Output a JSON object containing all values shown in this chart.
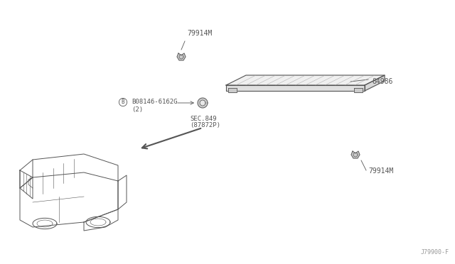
{
  "bg_color": "#ffffff",
  "line_color": "#555555",
  "text_color": "#555555",
  "part_number_bottom_right": "J79900-F",
  "labels": {
    "top_clip": "79914M",
    "panel": "84986",
    "bottom_clip": "79914M",
    "bolt_label": "B08146-6162G",
    "bolt_qty": "(2)",
    "sec": "SEC.849",
    "sec2": "(87872P)"
  },
  "figsize": [
    6.4,
    3.72
  ],
  "dpi": 100
}
